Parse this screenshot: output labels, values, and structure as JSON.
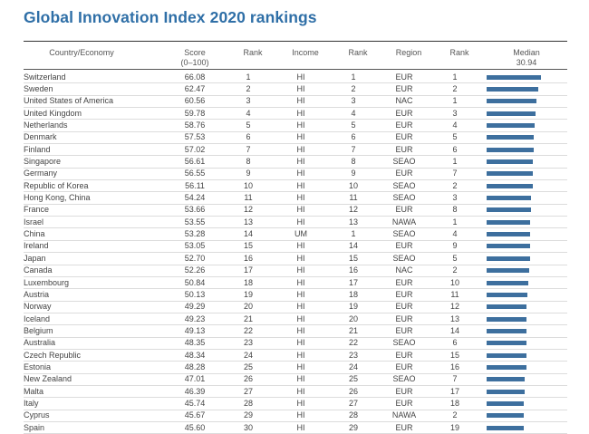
{
  "title": "Global Innovation Index 2020 rankings",
  "headers": {
    "country": "Country/Economy",
    "score": "Score",
    "score_sub": "(0–100)",
    "rank1": "Rank",
    "income": "Income",
    "rank2": "Rank",
    "region": "Region",
    "rank3": "Rank",
    "median": "Median",
    "median_value": "30.94"
  },
  "rows": [
    {
      "country": "Switzerland",
      "score": "66.08",
      "rank": "1",
      "income": "HI",
      "income_rank": "1",
      "region": "EUR",
      "region_rank": "1"
    },
    {
      "country": "Sweden",
      "score": "62.47",
      "rank": "2",
      "income": "HI",
      "income_rank": "2",
      "region": "EUR",
      "region_rank": "2"
    },
    {
      "country": "United States of America",
      "score": "60.56",
      "rank": "3",
      "income": "HI",
      "income_rank": "3",
      "region": "NAC",
      "region_rank": "1"
    },
    {
      "country": "United Kingdom",
      "score": "59.78",
      "rank": "4",
      "income": "HI",
      "income_rank": "4",
      "region": "EUR",
      "region_rank": "3"
    },
    {
      "country": "Netherlands",
      "score": "58.76",
      "rank": "5",
      "income": "HI",
      "income_rank": "5",
      "region": "EUR",
      "region_rank": "4"
    },
    {
      "country": "Denmark",
      "score": "57.53",
      "rank": "6",
      "income": "HI",
      "income_rank": "6",
      "region": "EUR",
      "region_rank": "5"
    },
    {
      "country": "Finland",
      "score": "57.02",
      "rank": "7",
      "income": "HI",
      "income_rank": "7",
      "region": "EUR",
      "region_rank": "6"
    },
    {
      "country": "Singapore",
      "score": "56.61",
      "rank": "8",
      "income": "HI",
      "income_rank": "8",
      "region": "SEAO",
      "region_rank": "1"
    },
    {
      "country": "Germany",
      "score": "56.55",
      "rank": "9",
      "income": "HI",
      "income_rank": "9",
      "region": "EUR",
      "region_rank": "7"
    },
    {
      "country": "Republic of Korea",
      "score": "56.11",
      "rank": "10",
      "income": "HI",
      "income_rank": "10",
      "region": "SEAO",
      "region_rank": "2"
    },
    {
      "country": "Hong Kong, China",
      "score": "54.24",
      "rank": "11",
      "income": "HI",
      "income_rank": "11",
      "region": "SEAO",
      "region_rank": "3"
    },
    {
      "country": "France",
      "score": "53.66",
      "rank": "12",
      "income": "HI",
      "income_rank": "12",
      "region": "EUR",
      "region_rank": "8"
    },
    {
      "country": "Israel",
      "score": "53.55",
      "rank": "13",
      "income": "HI",
      "income_rank": "13",
      "region": "NAWA",
      "region_rank": "1"
    },
    {
      "country": "China",
      "score": "53.28",
      "rank": "14",
      "income": "UM",
      "income_rank": "1",
      "region": "SEAO",
      "region_rank": "4"
    },
    {
      "country": "Ireland",
      "score": "53.05",
      "rank": "15",
      "income": "HI",
      "income_rank": "14",
      "region": "EUR",
      "region_rank": "9"
    },
    {
      "country": "Japan",
      "score": "52.70",
      "rank": "16",
      "income": "HI",
      "income_rank": "15",
      "region": "SEAO",
      "region_rank": "5"
    },
    {
      "country": "Canada",
      "score": "52.26",
      "rank": "17",
      "income": "HI",
      "income_rank": "16",
      "region": "NAC",
      "region_rank": "2"
    },
    {
      "country": "Luxembourg",
      "score": "50.84",
      "rank": "18",
      "income": "HI",
      "income_rank": "17",
      "region": "EUR",
      "region_rank": "10"
    },
    {
      "country": "Austria",
      "score": "50.13",
      "rank": "19",
      "income": "HI",
      "income_rank": "18",
      "region": "EUR",
      "region_rank": "11"
    },
    {
      "country": "Norway",
      "score": "49.29",
      "rank": "20",
      "income": "HI",
      "income_rank": "19",
      "region": "EUR",
      "region_rank": "12"
    },
    {
      "country": "Iceland",
      "score": "49.23",
      "rank": "21",
      "income": "HI",
      "income_rank": "20",
      "region": "EUR",
      "region_rank": "13"
    },
    {
      "country": "Belgium",
      "score": "49.13",
      "rank": "22",
      "income": "HI",
      "income_rank": "21",
      "region": "EUR",
      "region_rank": "14"
    },
    {
      "country": "Australia",
      "score": "48.35",
      "rank": "23",
      "income": "HI",
      "income_rank": "22",
      "region": "SEAO",
      "region_rank": "6"
    },
    {
      "country": "Czech Republic",
      "score": "48.34",
      "rank": "24",
      "income": "HI",
      "income_rank": "23",
      "region": "EUR",
      "region_rank": "15"
    },
    {
      "country": "Estonia",
      "score": "48.28",
      "rank": "25",
      "income": "HI",
      "income_rank": "24",
      "region": "EUR",
      "region_rank": "16"
    },
    {
      "country": "New Zealand",
      "score": "47.01",
      "rank": "26",
      "income": "HI",
      "income_rank": "25",
      "region": "SEAO",
      "region_rank": "7"
    },
    {
      "country": "Malta",
      "score": "46.39",
      "rank": "27",
      "income": "HI",
      "income_rank": "26",
      "region": "EUR",
      "region_rank": "17"
    },
    {
      "country": "Italy",
      "score": "45.74",
      "rank": "28",
      "income": "HI",
      "income_rank": "27",
      "region": "EUR",
      "region_rank": "18"
    },
    {
      "country": "Cyprus",
      "score": "45.67",
      "rank": "29",
      "income": "HI",
      "income_rank": "28",
      "region": "NAWA",
      "region_rank": "2"
    },
    {
      "country": "Spain",
      "score": "45.60",
      "rank": "30",
      "income": "HI",
      "income_rank": "29",
      "region": "EUR",
      "region_rank": "19"
    }
  ],
  "colors": {
    "title": "#2f6fa7",
    "bar": "#3d6f9e"
  }
}
